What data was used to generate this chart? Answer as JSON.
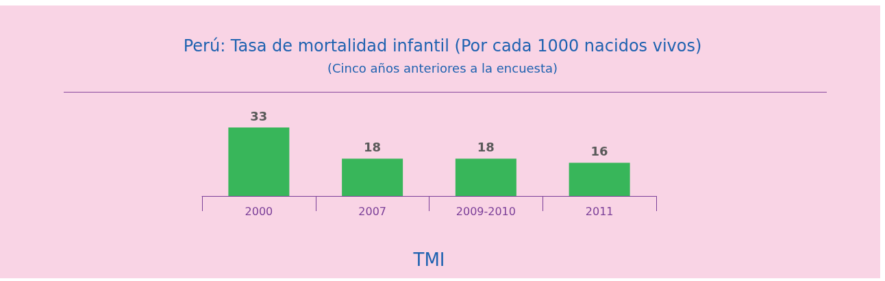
{
  "chart_data": {
    "type": "bar",
    "title": "Perú: Tasa de mortalidad infantil (Por cada 1000 nacidos vivos)",
    "subtitle": "(Cinco años anteriores a la encuesta)",
    "xlabel": "TMI",
    "categories": [
      "2000",
      "2007",
      "2009-2010",
      "2011"
    ],
    "values": [
      33,
      18,
      18,
      16
    ],
    "color": "#38b65a",
    "data_labels": true
  }
}
